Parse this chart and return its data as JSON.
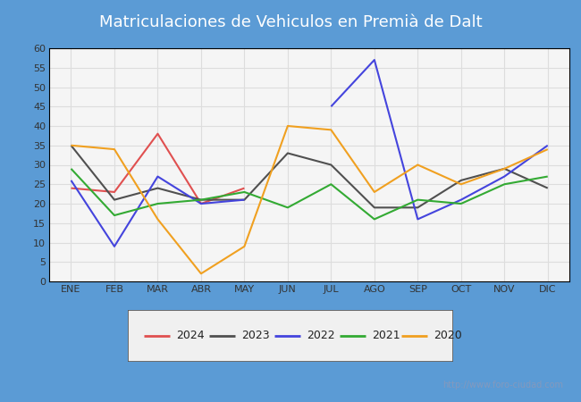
{
  "title": "Matriculaciones de Vehiculos en Premià de Dalt",
  "months": [
    "ENE",
    "FEB",
    "MAR",
    "ABR",
    "MAY",
    "JUN",
    "JUL",
    "AGO",
    "SEP",
    "OCT",
    "NOV",
    "DIC"
  ],
  "series": {
    "2024": [
      24,
      23,
      38,
      20,
      24,
      null,
      null,
      null,
      null,
      null,
      null,
      null
    ],
    "2023": [
      35,
      21,
      24,
      21,
      21,
      33,
      30,
      19,
      19,
      26,
      29,
      24
    ],
    "2022": [
      26,
      9,
      27,
      20,
      21,
      null,
      45,
      57,
      16,
      21,
      27,
      35
    ],
    "2021": [
      29,
      17,
      20,
      21,
      23,
      19,
      25,
      16,
      21,
      20,
      25,
      27
    ],
    "2020": [
      35,
      34,
      16,
      2,
      9,
      40,
      39,
      23,
      30,
      25,
      29,
      34
    ]
  },
  "colors": {
    "2024": "#e05050",
    "2023": "#505050",
    "2022": "#4444dd",
    "2021": "#33aa33",
    "2020": "#f0a020"
  },
  "ylim": [
    0,
    60
  ],
  "yticks": [
    0,
    5,
    10,
    15,
    20,
    25,
    30,
    35,
    40,
    45,
    50,
    55,
    60
  ],
  "header_color": "#5b9bd5",
  "title_color": "#ffffff",
  "plot_bg": "#f5f5f5",
  "outer_bg": "#5b9bd5",
  "border_color": "#000000",
  "watermark": "http://www.foro-ciudad.com",
  "watermark_color": "#8899bb",
  "grid_color": "#dddddd",
  "tick_label_color": "#333333",
  "legend_bg": "#f0f0f0",
  "legend_border": "#555555",
  "title_fontsize": 13,
  "tick_fontsize": 8,
  "legend_fontsize": 9,
  "line_width": 1.5
}
